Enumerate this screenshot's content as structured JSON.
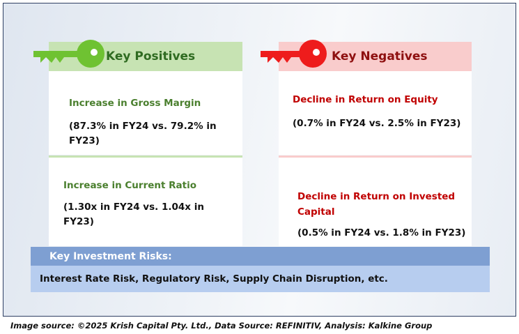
{
  "positives": {
    "heading": "Key Positives",
    "accent_color": "#6fc232",
    "items": [
      {
        "title": "Increase in Gross Margin",
        "detail": "(87.3% in FY24 vs. 79.2% in FY23)"
      },
      {
        "title": "Increase in Current Ratio",
        "detail": "(1.30x in FY24 vs. 1.04x in FY23)"
      }
    ]
  },
  "negatives": {
    "heading": "Key Negatives",
    "accent_color": "#ee1c1c",
    "items": [
      {
        "title": "Decline in Return on Equity",
        "detail": "(0.7% in FY24 vs. 2.5% in FY23)"
      },
      {
        "title": "Decline in Return on Invested Capital",
        "detail": "(0.5% in FY24 vs. 1.8% in FY23)"
      }
    ]
  },
  "risks": {
    "heading": "Key Investment Risks:",
    "text": "Interest Rate Risk, Regulatory Risk, Supply Chain Disruption, etc."
  },
  "footer": {
    "text": "Image source: ©2025 Krish Capital Pty. Ltd., Data Source: REFINITIV, Analysis: Kalkine Group"
  },
  "icons": [
    "green-key-icon",
    "red-key-icon"
  ]
}
